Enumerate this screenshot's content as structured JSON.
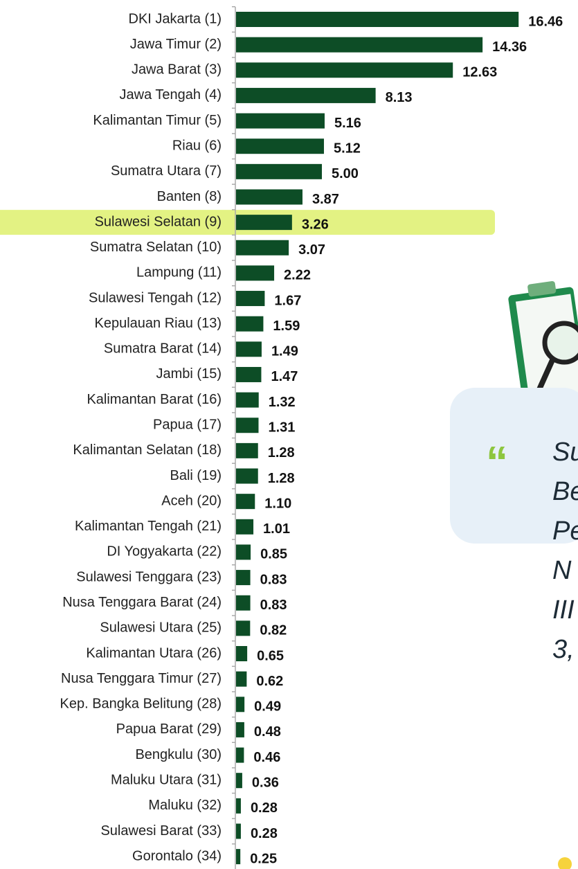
{
  "chart_data": {
    "type": "barh",
    "categories": [
      "DKI Jakarta (1)",
      "Jawa Timur (2)",
      "Jawa Barat (3)",
      "Jawa Tengah (4)",
      "Kalimantan Timur (5)",
      "Riau (6)",
      "Sumatra Utara (7)",
      "Banten (8)",
      "Sulawesi Selatan (9)",
      "Sumatra Selatan (10)",
      "Lampung (11)",
      "Sulawesi Tengah (12)",
      "Kepulauan Riau (13)",
      "Sumatra Barat (14)",
      "Jambi (15)",
      "Kalimantan Barat (16)",
      "Papua (17)",
      "Kalimantan Selatan (18)",
      "Bali (19)",
      "Aceh (20)",
      "Kalimantan Tengah (21)",
      "DI Yogyakarta (22)",
      "Sulawesi Tenggara (23)",
      "Nusa Tenggara Barat (24)",
      "Sulawesi Utara (25)",
      "Kalimantan Utara (26)",
      "Nusa Tenggara Timur (27)",
      "Kep. Bangka Belitung (28)",
      "Papua Barat (29)",
      "Bengkulu (30)",
      "Maluku Utara (31)",
      "Maluku (32)",
      "Sulawesi Barat (33)",
      "Gorontalo (34)"
    ],
    "values": [
      16.46,
      14.36,
      12.63,
      8.13,
      5.16,
      5.12,
      5.0,
      3.87,
      3.26,
      3.07,
      2.22,
      1.67,
      1.59,
      1.49,
      1.47,
      1.32,
      1.31,
      1.28,
      1.28,
      1.1,
      1.01,
      0.85,
      0.83,
      0.83,
      0.82,
      0.65,
      0.62,
      0.49,
      0.48,
      0.46,
      0.36,
      0.28,
      0.28,
      0.25
    ],
    "value_labels": [
      "16.46",
      "14.36",
      "12.63",
      "8.13",
      "5.16",
      "5.12",
      "5.00",
      "3.87",
      "3.26",
      "3.07",
      "2.22",
      "1.67",
      "1.59",
      "1.49",
      "1.47",
      "1.32",
      "1.31",
      "1.28",
      "1.28",
      "1.10",
      "1.01",
      "0.85",
      "0.83",
      "0.83",
      "0.82",
      "0.65",
      "0.62",
      "0.49",
      "0.48",
      "0.46",
      "0.36",
      "0.28",
      "0.28",
      "0.25"
    ],
    "color": "#0d4d26",
    "highlight": {
      "index": 8,
      "color": "#e3f283"
    }
  },
  "callout": {
    "quote_mark": "“",
    "lines": [
      "Su",
      "Be",
      "Pe",
      "N",
      "III",
      "3,"
    ]
  }
}
